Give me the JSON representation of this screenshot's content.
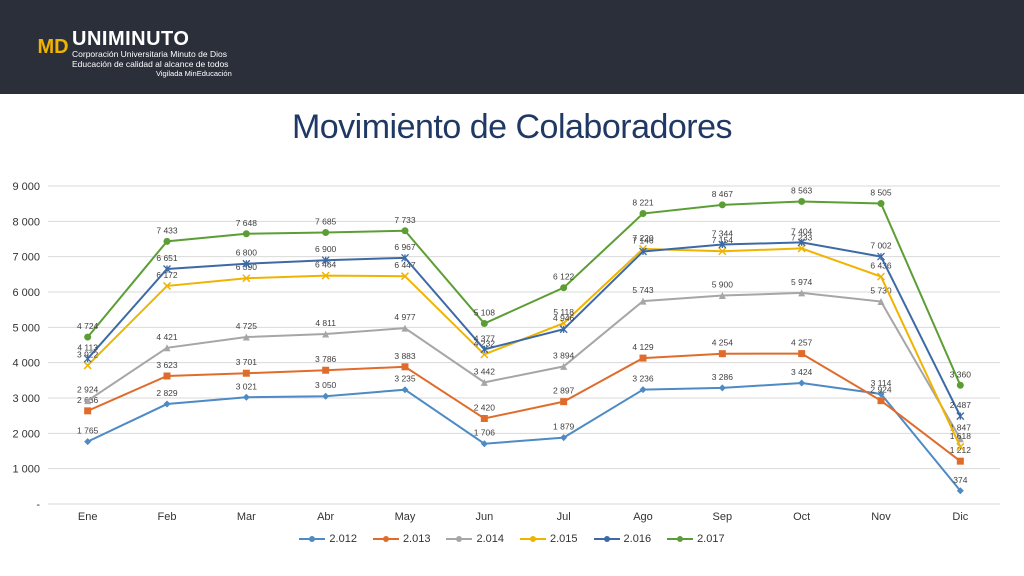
{
  "header": {
    "logo_title": "UNIMINUTO",
    "logo_line1": "Corporación Universitaria Minuto de Dios",
    "logo_line2": "Educación de calidad al alcance de todos",
    "logo_line3": "Vigilada MinEducación",
    "logo_mark": "MD"
  },
  "title": "Movimiento de Colaboradores",
  "chart_data": {
    "type": "line",
    "title": "",
    "xlabel": "",
    "ylabel": "",
    "categories": [
      "Ene",
      "Feb",
      "Mar",
      "Abr",
      "May",
      "Jun",
      "Jul",
      "Ago",
      "Sep",
      "Oct",
      "Nov",
      "Dic"
    ],
    "ylim": [
      0,
      9000
    ],
    "yticks": [
      0,
      1000,
      2000,
      3000,
      4000,
      5000,
      6000,
      7000,
      8000,
      9000
    ],
    "ytick_labels": [
      "-",
      "1 000",
      "2 000",
      "3 000",
      "4 000",
      "5 000",
      "6 000",
      "7 000",
      "8 000",
      "9 000"
    ],
    "grid": true,
    "legend_position": "bottom",
    "series": [
      {
        "name": "2.012",
        "color": "#4e8ac4",
        "marker": "diamond",
        "values": [
          1765,
          2829,
          3021,
          3050,
          3235,
          1706,
          1879,
          3236,
          3286,
          3424,
          3114,
          374
        ],
        "labels": [
          "1 765",
          "2 829",
          "3 021",
          "3 050",
          "3 235",
          "1 706",
          "1 879",
          "3 236",
          "3 286",
          "3 424",
          "3 114",
          "374"
        ]
      },
      {
        "name": "2.013",
        "color": "#e06c2c",
        "marker": "square",
        "values": [
          2636,
          3623,
          3701,
          3786,
          3883,
          2420,
          2897,
          4129,
          4254,
          4257,
          2924,
          1212
        ],
        "labels": [
          "2 636",
          "3 623",
          "3 701",
          "3 786",
          "3 883",
          "2 420",
          "2 897",
          "4 129",
          "4 254",
          "4 257",
          "2 924",
          "1 212"
        ]
      },
      {
        "name": "2.014",
        "color": "#a6a6a6",
        "marker": "triangle",
        "values": [
          2924,
          4421,
          4725,
          4811,
          4977,
          3442,
          3894,
          5743,
          5900,
          5974,
          5730,
          1847
        ],
        "labels": [
          "2 924",
          "4 421",
          "4 725",
          "4 811",
          "4 977",
          "3 442",
          "3 894",
          "5 743",
          "5 900",
          "5 974",
          "5 730",
          "1 847"
        ]
      },
      {
        "name": "2.015",
        "color": "#f0b400",
        "marker": "x",
        "values": [
          3922,
          6172,
          6390,
          6464,
          6447,
          4232,
          5118,
          7220,
          7154,
          7233,
          6436,
          1618
        ],
        "labels": [
          "3 922",
          "6 172",
          "6 390",
          "6 464",
          "6 447",
          "4 232",
          "5 118",
          "7 220",
          "7 154",
          "7 233",
          "6 436",
          "1 618"
        ]
      },
      {
        "name": "2.016",
        "color": "#3d6aa5",
        "marker": "star",
        "values": [
          4113,
          6651,
          6800,
          6900,
          6967,
          4377,
          4946,
          7146,
          7344,
          7404,
          7002,
          2487
        ],
        "labels": [
          "4 113",
          "6 651",
          "6 800",
          "6 900",
          "6 967",
          "4 377",
          "4 946",
          "7 146",
          "7 344",
          "7 404",
          "7 002",
          "2 487"
        ]
      },
      {
        "name": "2.017",
        "color": "#5c9e35",
        "marker": "circle",
        "values": [
          4724,
          7433,
          7648,
          7685,
          7733,
          5108,
          6122,
          8221,
          8467,
          8563,
          8505,
          3360
        ],
        "labels": [
          "4 724",
          "7 433",
          "7 648",
          "7 685",
          "7 733",
          "5 108",
          "6 122",
          "8 221",
          "8 467",
          "8 563",
          "8 505",
          "3 360"
        ]
      }
    ]
  }
}
